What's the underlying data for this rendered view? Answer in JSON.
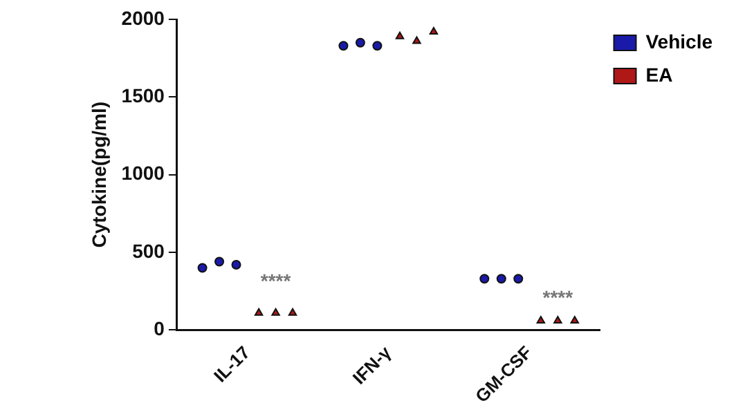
{
  "chart_data": {
    "type": "scatter",
    "ylabel": "Cytokine(pg/ml)",
    "categories": [
      "IL-17",
      "IFN-γ",
      "GM-CSF"
    ],
    "series": [
      {
        "name": "Vehicle",
        "color": "#1a1aa8",
        "marker": "circle",
        "x": [
          "IL-17",
          "IL-17",
          "IL-17",
          "IFN-γ",
          "IFN-γ",
          "IFN-γ",
          "GM-CSF",
          "GM-CSF",
          "GM-CSF"
        ],
        "values": [
          400,
          440,
          420,
          1830,
          1850,
          1830,
          330,
          330,
          330
        ]
      },
      {
        "name": "EA",
        "color": "#b01818",
        "marker": "triangle",
        "x": [
          "IL-17",
          "IL-17",
          "IL-17",
          "IFN-γ",
          "IFN-γ",
          "IFN-γ",
          "GM-CSF",
          "GM-CSF",
          "GM-CSF"
        ],
        "values": [
          110,
          110,
          110,
          1890,
          1860,
          1920,
          60,
          60,
          60
        ]
      }
    ],
    "ylim": [
      0,
      2000
    ],
    "yticks": [
      0,
      500,
      1000,
      1500,
      2000
    ],
    "grid": false,
    "legend": "top right",
    "annotations": [
      "****",
      "****"
    ]
  }
}
